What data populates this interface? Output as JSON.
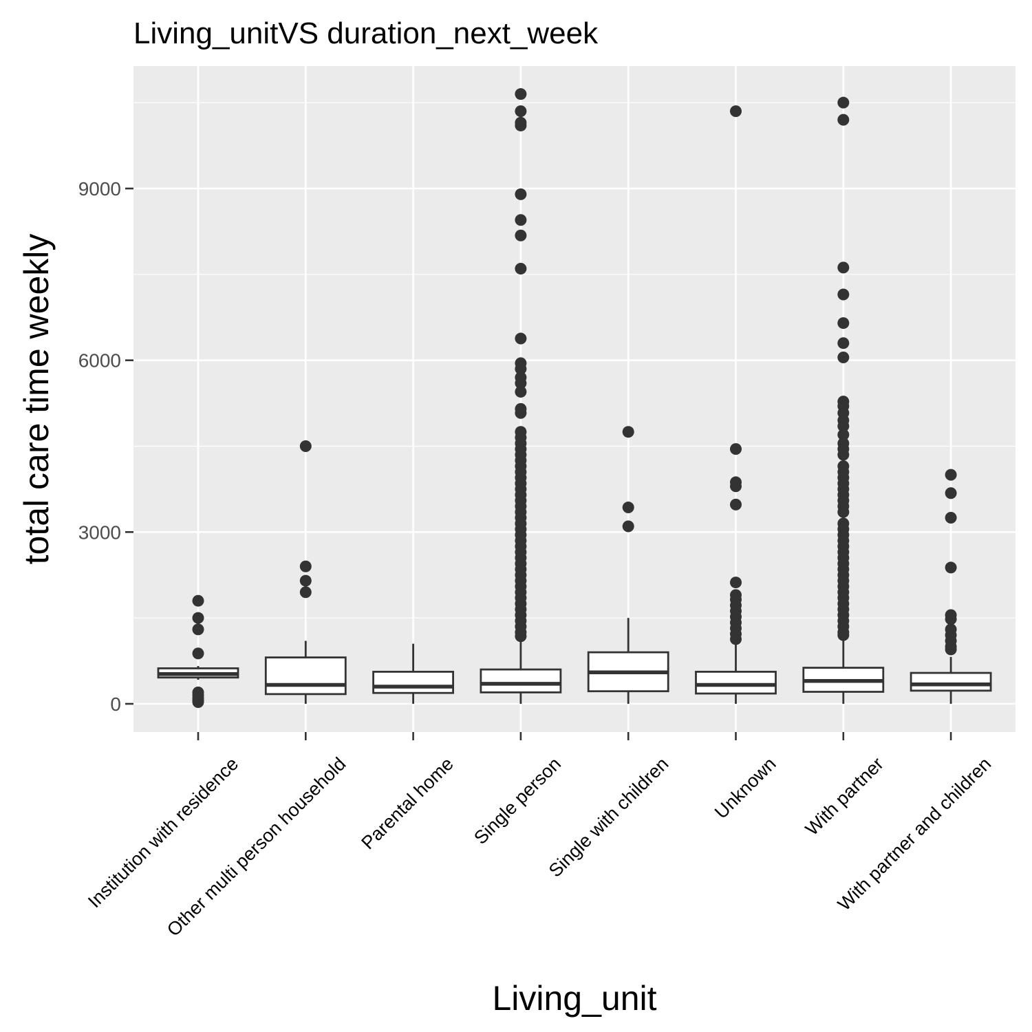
{
  "chart_data": {
    "type": "box",
    "title": "Living_unitVS duration_next_week",
    "xlabel": "Living_unit",
    "ylabel": "total care time weekly",
    "ylim": [
      -500,
      11200
    ],
    "yticks": [
      0,
      3000,
      6000,
      9000
    ],
    "grid": true,
    "legend": "none",
    "colors": {
      "panel": "#ebebeb",
      "grid": "#ffffff",
      "box_fill": "#ffffff",
      "box_stroke": "#333333",
      "outlier": "#333333",
      "tick_text": "#4d4d4d"
    },
    "categories": [
      "Institution with residence",
      "Other multi person household",
      "Parental home",
      "Single person",
      "Single with children",
      "Unknown",
      "With partner",
      "With partner and children"
    ],
    "boxes": [
      {
        "category": "Institution with residence",
        "lower_whisker": 420,
        "q1": 460,
        "median": 520,
        "q3": 620,
        "upper_whisker": 660,
        "outliers": [
          1800,
          1500,
          1300,
          880,
          200,
          150,
          100,
          60,
          30
        ]
      },
      {
        "category": "Other multi person household",
        "lower_whisker": 0,
        "q1": 170,
        "median": 330,
        "q3": 810,
        "upper_whisker": 1100,
        "outliers": [
          4500,
          2400,
          2150,
          1950
        ]
      },
      {
        "category": "Parental home",
        "lower_whisker": 0,
        "q1": 190,
        "median": 300,
        "q3": 560,
        "upper_whisker": 1050,
        "outliers": []
      },
      {
        "category": "Single person",
        "lower_whisker": 0,
        "q1": 200,
        "median": 350,
        "q3": 600,
        "upper_whisker": 1100,
        "outliers": [
          10650,
          10350,
          10150,
          10100,
          8900,
          8450,
          8180,
          7600,
          6380,
          5950,
          5850,
          5700,
          5600,
          5450,
          5150,
          5080,
          4750,
          4650,
          4550,
          4450,
          4350,
          4250,
          4150,
          4050,
          3950,
          3850,
          3750,
          3650,
          3550,
          3450,
          3350,
          3250,
          3150,
          3050,
          2950,
          2850,
          2750,
          2650,
          2550,
          2450,
          2350,
          2250,
          2150,
          2050,
          1950,
          1850,
          1750,
          1650,
          1550,
          1450,
          1350,
          1250,
          1180
        ]
      },
      {
        "category": "Single with children",
        "lower_whisker": 0,
        "q1": 220,
        "median": 550,
        "q3": 900,
        "upper_whisker": 1500,
        "outliers": [
          4750,
          3430,
          3100
        ]
      },
      {
        "category": "Unknown",
        "lower_whisker": 0,
        "q1": 180,
        "median": 330,
        "q3": 560,
        "upper_whisker": 1050,
        "outliers": [
          10350,
          4450,
          3870,
          3800,
          3480,
          2120,
          1900,
          1820,
          1720,
          1620,
          1520,
          1420,
          1320,
          1220,
          1130
        ]
      },
      {
        "category": "With partner",
        "lower_whisker": 0,
        "q1": 210,
        "median": 400,
        "q3": 630,
        "upper_whisker": 1150,
        "outliers": [
          10500,
          10200,
          7620,
          7150,
          6650,
          6300,
          6050,
          5280,
          5200,
          5080,
          4950,
          4850,
          4700,
          4550,
          4450,
          4350,
          4150,
          4050,
          3950,
          3850,
          3750,
          3650,
          3550,
          3450,
          3350,
          3150,
          3050,
          2950,
          2850,
          2750,
          2650,
          2550,
          2450,
          2350,
          2250,
          2150,
          2050,
          1950,
          1850,
          1750,
          1650,
          1550,
          1450,
          1350,
          1250,
          1200
        ]
      },
      {
        "category": "With partner and children",
        "lower_whisker": 0,
        "q1": 230,
        "median": 340,
        "q3": 540,
        "upper_whisker": 820,
        "outliers": [
          4000,
          3680,
          3250,
          2380,
          1550,
          1480,
          1300,
          1200,
          1100,
          1000,
          950
        ]
      }
    ]
  }
}
